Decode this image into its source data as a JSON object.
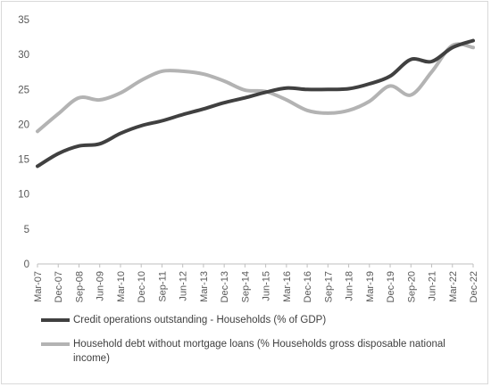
{
  "chart_data": {
    "type": "line",
    "x_labels": [
      "Mar-07",
      "Dec-07",
      "Sep-08",
      "Jun-09",
      "Mar-10",
      "Dec-10",
      "Sep-11",
      "Jun-12",
      "Mar-13",
      "Dec-13",
      "Sep-14",
      "Jun-15",
      "Mar-16",
      "Dec-16",
      "Sep-17",
      "Jun-18",
      "Mar-19",
      "Dec-19",
      "Sep-20",
      "Jun-21",
      "Mar-22",
      "Dec-22"
    ],
    "ylim": [
      0,
      35
    ],
    "y_ticks": [
      0,
      5,
      10,
      15,
      20,
      25,
      30,
      35
    ],
    "grid": false,
    "legend_position": "bottom",
    "series": [
      {
        "name": "Credit operations outstanding - Households (% of GDP)",
        "color": "#404040",
        "points": [
          [
            "Mar-07",
            14.0
          ],
          [
            "Dec-07",
            15.8
          ],
          [
            "Sep-08",
            16.9
          ],
          [
            "Jun-09",
            17.2
          ],
          [
            "Mar-10",
            18.7
          ],
          [
            "Dec-10",
            19.8
          ],
          [
            "Sep-11",
            20.5
          ],
          [
            "Jun-12",
            21.4
          ],
          [
            "Mar-13",
            22.2
          ],
          [
            "Dec-13",
            23.1
          ],
          [
            "Sep-14",
            23.8
          ],
          [
            "Jun-15",
            24.6
          ],
          [
            "Mar-16",
            25.2
          ],
          [
            "Dec-16",
            25.0
          ],
          [
            "Sep-17",
            25.0
          ],
          [
            "Jun-18",
            25.1
          ],
          [
            "Mar-19",
            25.8
          ],
          [
            "Dec-19",
            26.9
          ],
          [
            "Sep-20",
            29.3
          ],
          [
            "Jun-21",
            29.0
          ],
          [
            "Mar-22",
            31.0
          ],
          [
            "Dec-22",
            32.0
          ]
        ]
      },
      {
        "name": "Household debt without mortgage loans (% Households gross disposable national income)",
        "color": "#b3b3b3",
        "points": [
          [
            "Mar-07",
            19.0
          ],
          [
            "Dec-07",
            21.5
          ],
          [
            "Sep-08",
            23.8
          ],
          [
            "Jun-09",
            23.5
          ],
          [
            "Mar-10",
            24.5
          ],
          [
            "Dec-10",
            26.3
          ],
          [
            "Sep-11",
            27.6
          ],
          [
            "Jun-12",
            27.6
          ],
          [
            "Mar-13",
            27.2
          ],
          [
            "Dec-13",
            26.2
          ],
          [
            "Sep-14",
            24.9
          ],
          [
            "Jun-15",
            24.7
          ],
          [
            "Mar-16",
            23.5
          ],
          [
            "Dec-16",
            22.0
          ],
          [
            "Sep-17",
            21.6
          ],
          [
            "Jun-18",
            22.0
          ],
          [
            "Mar-19",
            23.3
          ],
          [
            "Dec-19",
            25.5
          ],
          [
            "Sep-20",
            24.2
          ],
          [
            "Jun-21",
            27.5
          ],
          [
            "Mar-22",
            31.3
          ],
          [
            "Dec-22",
            31.0
          ]
        ]
      }
    ]
  }
}
